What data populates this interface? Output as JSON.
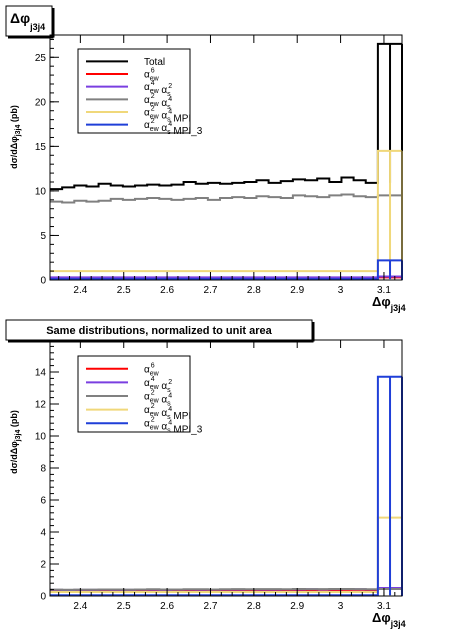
{
  "chart_data": [
    {
      "type": "line",
      "title": "Δφ",
      "title_sub": "j3j4",
      "xlabel": "Δφ",
      "xlabel_sub": "j3j4",
      "ylabel": "dσ/dΔφ",
      "ylabel_sub": "j3j4",
      "ylabel_unit": "(pb)",
      "xlim": [
        2.33,
        3.1416
      ],
      "ylim": [
        0,
        27.5
      ],
      "xticks": [
        "2.4",
        "2.5",
        "2.6",
        "2.7",
        "2.8",
        "2.9",
        "3",
        "3.1"
      ],
      "yticks": [
        "0",
        "5",
        "10",
        "15",
        "20",
        "25"
      ],
      "legend_placement": "top-left",
      "bin_edges": [
        2.33,
        2.358,
        2.386,
        2.414,
        2.442,
        2.47,
        2.498,
        2.526,
        2.554,
        2.582,
        2.61,
        2.638,
        2.666,
        2.694,
        2.722,
        2.75,
        2.778,
        2.806,
        2.834,
        2.862,
        2.89,
        2.918,
        2.946,
        2.974,
        3.002,
        3.03,
        3.058,
        3.086,
        3.114,
        3.1416
      ],
      "series": [
        {
          "name": "Total",
          "color": "#000000",
          "values": [
            10.2,
            10.4,
            10.6,
            10.5,
            10.8,
            10.6,
            10.5,
            10.6,
            10.7,
            10.6,
            10.7,
            11.0,
            10.8,
            10.9,
            10.8,
            10.9,
            11.0,
            11.2,
            10.9,
            11.1,
            11.3,
            11.2,
            11.4,
            11.0,
            11.5,
            11.2,
            10.9,
            26.5,
            26.5
          ]
        },
        {
          "name": "α_ew^6",
          "color": "#ff0000",
          "values": [
            0.2,
            0.2,
            0.2,
            0.2,
            0.2,
            0.2,
            0.2,
            0.2,
            0.2,
            0.2,
            0.2,
            0.2,
            0.2,
            0.2,
            0.2,
            0.2,
            0.2,
            0.2,
            0.2,
            0.2,
            0.2,
            0.2,
            0.2,
            0.2,
            0.2,
            0.2,
            0.2,
            0.3,
            0.3
          ]
        },
        {
          "name": "α_ew^4 α_s^2",
          "color": "#7a3fe0",
          "values": [
            0.3,
            0.3,
            0.3,
            0.3,
            0.3,
            0.3,
            0.3,
            0.3,
            0.3,
            0.3,
            0.3,
            0.3,
            0.3,
            0.3,
            0.3,
            0.3,
            0.3,
            0.3,
            0.3,
            0.3,
            0.3,
            0.3,
            0.3,
            0.3,
            0.3,
            0.3,
            0.3,
            0.4,
            0.4
          ]
        },
        {
          "name": "α_ew^2 α_s^4",
          "color": "#808080",
          "values": [
            8.8,
            8.7,
            8.9,
            8.8,
            8.9,
            9.1,
            9.0,
            9.1,
            9.2,
            9.1,
            9.0,
            9.1,
            9.2,
            9.0,
            9.2,
            9.3,
            9.2,
            9.4,
            9.3,
            9.2,
            9.5,
            9.4,
            9.3,
            9.5,
            9.6,
            9.4,
            9.3,
            9.5,
            9.5
          ]
        },
        {
          "name": "α_ew^2 α_s^4 MPI",
          "color": "#f0d87a",
          "values": [
            1.0,
            1.0,
            1.0,
            1.0,
            1.0,
            1.0,
            1.0,
            1.0,
            1.0,
            1.0,
            1.0,
            1.0,
            1.0,
            1.0,
            1.0,
            1.0,
            1.0,
            1.0,
            1.0,
            1.0,
            1.0,
            1.0,
            1.0,
            1.0,
            1.0,
            1.0,
            1.0,
            14.5,
            14.5
          ]
        },
        {
          "name": "α_ew^2 α_s^4 MPI_3",
          "color": "#1f3fd8",
          "values": [
            0.1,
            0.1,
            0.1,
            0.1,
            0.1,
            0.1,
            0.1,
            0.1,
            0.1,
            0.1,
            0.1,
            0.1,
            0.1,
            0.1,
            0.1,
            0.1,
            0.1,
            0.1,
            0.1,
            0.1,
            0.1,
            0.1,
            0.1,
            0.1,
            0.1,
            0.1,
            0.1,
            2.2,
            2.2
          ]
        }
      ]
    },
    {
      "type": "line",
      "title": "Same distributions, normalized to unit area",
      "xlabel": "Δφ",
      "xlabel_sub": "j3j4",
      "ylabel": "dσ/dΔφ",
      "ylabel_sub": "j3j4",
      "ylabel_unit": "(pb)",
      "xlim": [
        2.33,
        3.1416
      ],
      "ylim": [
        0,
        16
      ],
      "xticks": [
        "2.4",
        "2.5",
        "2.6",
        "2.7",
        "2.8",
        "2.9",
        "3",
        "3.1"
      ],
      "yticks": [
        "0",
        "2",
        "4",
        "6",
        "8",
        "10",
        "12",
        "14"
      ],
      "legend_placement": "top-left",
      "bin_edges": [
        2.33,
        2.358,
        2.386,
        2.414,
        2.442,
        2.47,
        2.498,
        2.526,
        2.554,
        2.582,
        2.61,
        2.638,
        2.666,
        2.694,
        2.722,
        2.75,
        2.778,
        2.806,
        2.834,
        2.862,
        2.89,
        2.918,
        2.946,
        2.974,
        3.002,
        3.03,
        3.058,
        3.086,
        3.114,
        3.1416
      ],
      "series": [
        {
          "name": "α_ew^6",
          "color": "#ff0000",
          "values": [
            0.35,
            0.35,
            0.36,
            0.35,
            0.36,
            0.36,
            0.35,
            0.36,
            0.36,
            0.35,
            0.36,
            0.36,
            0.37,
            0.36,
            0.36,
            0.36,
            0.37,
            0.37,
            0.36,
            0.37,
            0.37,
            0.37,
            0.38,
            0.37,
            0.38,
            0.38,
            0.37,
            0.45,
            0.45
          ]
        },
        {
          "name": "α_ew^4 α_s^2",
          "color": "#7a3fe0",
          "values": [
            0.38,
            0.37,
            0.38,
            0.38,
            0.39,
            0.38,
            0.38,
            0.39,
            0.39,
            0.38,
            0.39,
            0.4,
            0.39,
            0.39,
            0.4,
            0.4,
            0.41,
            0.4,
            0.4,
            0.41,
            0.41,
            0.42,
            0.41,
            0.42,
            0.43,
            0.42,
            0.41,
            0.5,
            0.5
          ]
        },
        {
          "name": "α_ew^2 α_s^4",
          "color": "#808080",
          "values": [
            0.4,
            0.39,
            0.4,
            0.4,
            0.41,
            0.41,
            0.4,
            0.41,
            0.42,
            0.41,
            0.41,
            0.42,
            0.42,
            0.41,
            0.42,
            0.43,
            0.42,
            0.43,
            0.43,
            0.42,
            0.44,
            0.43,
            0.43,
            0.44,
            0.44,
            0.43,
            0.42,
            0.44,
            0.44
          ]
        },
        {
          "name": "α_ew^2 α_s^4 MPI",
          "color": "#f0d87a",
          "values": [
            0.25,
            0.25,
            0.25,
            0.25,
            0.25,
            0.25,
            0.25,
            0.25,
            0.25,
            0.25,
            0.25,
            0.25,
            0.25,
            0.25,
            0.25,
            0.25,
            0.25,
            0.25,
            0.25,
            0.25,
            0.25,
            0.25,
            0.25,
            0.25,
            0.25,
            0.25,
            0.25,
            4.9,
            4.9
          ]
        },
        {
          "name": "α_ew^2 α_s^4 MPI_3",
          "color": "#1f3fd8",
          "values": [
            0.05,
            0.05,
            0.05,
            0.05,
            0.05,
            0.05,
            0.05,
            0.05,
            0.05,
            0.05,
            0.05,
            0.05,
            0.05,
            0.05,
            0.05,
            0.05,
            0.05,
            0.05,
            0.05,
            0.05,
            0.05,
            0.05,
            0.05,
            0.05,
            0.05,
            0.05,
            0.05,
            13.7,
            13.7
          ]
        }
      ]
    }
  ]
}
